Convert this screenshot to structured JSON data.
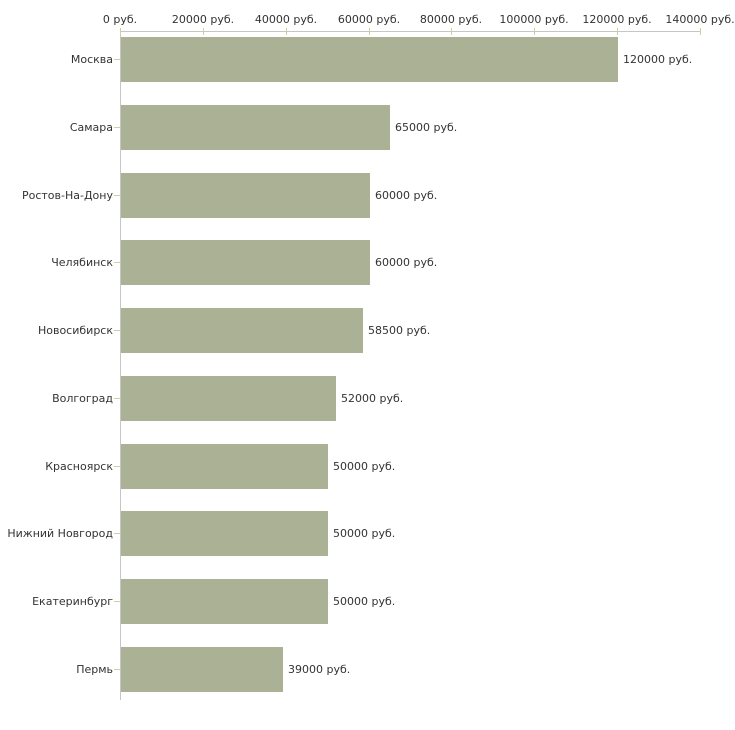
{
  "chart_data": {
    "type": "bar",
    "orientation": "horizontal",
    "title": "",
    "xlabel": "",
    "ylabel": "",
    "unit": "руб.",
    "categories": [
      "Москва",
      "Самара",
      "Ростов-На-Дону",
      "Челябинск",
      "Новосибирск",
      "Волгоград",
      "Красноярск",
      "Нижний Новгород",
      "Екатеринбург",
      "Пермь"
    ],
    "values": [
      120000,
      65000,
      60000,
      60000,
      58500,
      52000,
      50000,
      50000,
      50000,
      39000
    ],
    "value_labels": [
      "120000 руб.",
      "65000 руб.",
      "60000 руб.",
      "60000 руб.",
      "58500 руб.",
      "52000 руб.",
      "50000 руб.",
      "50000 руб.",
      "50000 руб.",
      "39000 руб."
    ],
    "x_ticks": [
      0,
      20000,
      40000,
      60000,
      80000,
      100000,
      120000,
      140000
    ],
    "x_tick_labels": [
      "0 руб.",
      "20000 руб.",
      "40000 руб.",
      "60000 руб.",
      "80000 руб.",
      "100000 руб.",
      "120000 руб.",
      "140000 руб."
    ],
    "xlim": [
      0,
      140000
    ],
    "grid": false,
    "legend": "none",
    "colors": {
      "bar": "#aab195",
      "axis_line": "#c6c6c6",
      "tick_mark": "#cfcf9f",
      "text": "#333333",
      "background": "#ffffff"
    }
  }
}
